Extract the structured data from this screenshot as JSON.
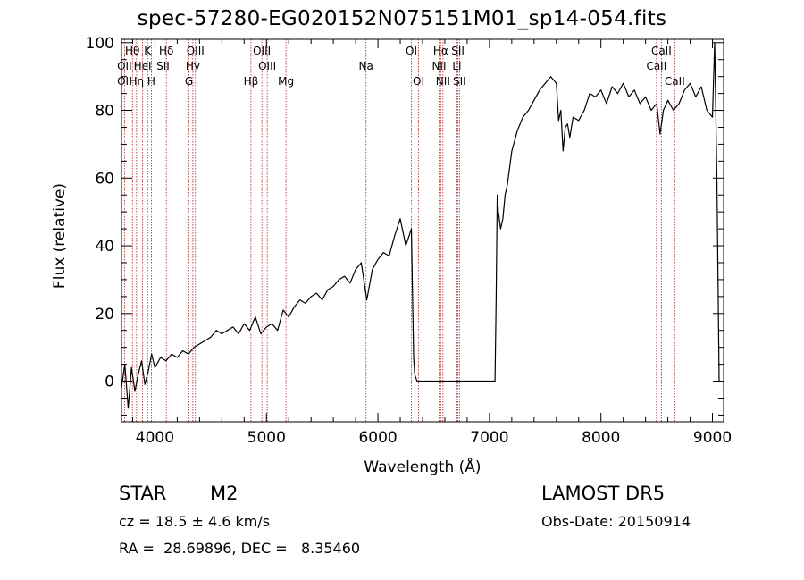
{
  "title": "spec-57280-EG020152N075151M01_sp14-054.fits",
  "info": {
    "object_class": "STAR",
    "subclass": "M2",
    "survey": "LAMOST DR5",
    "cz": "cz = 18.5 ± 4.6 km/s",
    "obs_date": "Obs-Date: 20150914",
    "coords": "RA =  28.69896, DEC =   8.35460"
  },
  "chart_data": {
    "type": "line",
    "xlabel": "Wavelength (Å)",
    "ylabel": "Flux (relative)",
    "xlim": [
      3700,
      9100
    ],
    "ylim": [
      -12,
      101
    ],
    "xticks": [
      4000,
      5000,
      6000,
      7000,
      8000,
      9000
    ],
    "yticks": [
      0,
      20,
      40,
      60,
      80,
      100
    ],
    "grid": false,
    "line_color": "#000000",
    "marker_color": "#b22222",
    "series": [
      {
        "x": [
          3700,
          3730,
          3760,
          3790,
          3820,
          3850,
          3880,
          3910,
          3940,
          3970,
          4000,
          4050,
          4100,
          4150,
          4200,
          4250,
          4300,
          4350,
          4400,
          4450,
          4500,
          4550,
          4600,
          4650,
          4700,
          4750,
          4800,
          4850,
          4900,
          4950,
          5000,
          5050,
          5100,
          5150,
          5200,
          5250,
          5300,
          5350,
          5400,
          5450,
          5500,
          5550,
          5600,
          5650,
          5700,
          5750,
          5800,
          5850,
          5900,
          5950,
          6000,
          6050,
          6100,
          6150,
          6200,
          6250,
          6300,
          6320,
          6330,
          6340,
          6350,
          6400,
          6500,
          6600,
          6700,
          6800,
          6900,
          7000,
          7050,
          7060,
          7070,
          7080,
          7100,
          7120,
          7140,
          7160,
          7200,
          7250,
          7300,
          7350,
          7400,
          7450,
          7500,
          7550,
          7600,
          7620,
          7640,
          7660,
          7680,
          7700,
          7720,
          7750,
          7800,
          7850,
          7900,
          7950,
          8000,
          8050,
          8100,
          8150,
          8200,
          8250,
          8300,
          8350,
          8400,
          8450,
          8500,
          8530,
          8560,
          8600,
          8650,
          8700,
          8750,
          8800,
          8850,
          8900,
          8950,
          9000,
          9020,
          9040,
          9060
        ],
        "y": [
          -2,
          5,
          -8,
          4,
          -3,
          2,
          6,
          -1,
          3,
          8,
          4,
          7,
          6,
          8,
          7,
          9,
          8,
          10,
          11,
          12,
          13,
          15,
          14,
          15,
          16,
          14,
          17,
          15,
          19,
          14,
          16,
          17,
          15,
          21,
          19,
          22,
          24,
          23,
          25,
          26,
          24,
          27,
          28,
          30,
          31,
          29,
          33,
          35,
          24,
          33,
          36,
          38,
          37,
          43,
          48,
          40,
          45,
          7,
          2,
          1,
          0,
          0,
          0,
          0,
          0,
          0,
          0,
          0,
          0,
          25,
          55,
          50,
          45,
          48,
          55,
          58,
          68,
          74,
          78,
          80,
          83,
          86,
          88,
          90,
          88,
          77,
          80,
          68,
          75,
          76,
          72,
          78,
          77,
          80,
          85,
          84,
          86,
          82,
          87,
          85,
          88,
          84,
          86,
          82,
          84,
          80,
          82,
          73,
          80,
          83,
          80,
          82,
          86,
          88,
          84,
          87,
          80,
          78,
          100,
          60,
          0
        ]
      }
    ],
    "lines": [
      {
        "label": "Hθ",
        "wave": 3798,
        "row": 0
      },
      {
        "label": "OII",
        "wave": 3727,
        "row": 1
      },
      {
        "label": "OII",
        "wave": 3727,
        "row": 2
      },
      {
        "label": "Hη",
        "wave": 3835,
        "row": 2
      },
      {
        "label": "K",
        "wave": 3934,
        "row": 0
      },
      {
        "label": "HeI",
        "wave": 3889,
        "row": 1
      },
      {
        "label": "H",
        "wave": 3968,
        "row": 2
      },
      {
        "label": "Hδ",
        "wave": 4102,
        "row": 0
      },
      {
        "label": "SII",
        "wave": 4072,
        "row": 1
      },
      {
        "label": "OIII",
        "wave": 4363,
        "row": 0
      },
      {
        "label": "Hγ",
        "wave": 4340,
        "row": 1
      },
      {
        "label": "G",
        "wave": 4305,
        "row": 2
      },
      {
        "label": "OIII",
        "wave": 4959,
        "row": 0
      },
      {
        "label": "OIII",
        "wave": 5007,
        "row": 1
      },
      {
        "label": "Hβ",
        "wave": 4861,
        "row": 2
      },
      {
        "label": "Mg",
        "wave": 5175,
        "row": 2
      },
      {
        "label": "Na",
        "wave": 5893,
        "row": 1
      },
      {
        "label": "OI",
        "wave": 6300,
        "row": 0
      },
      {
        "label": "OI",
        "wave": 6364,
        "row": 2
      },
      {
        "label": "Hα",
        "wave": 6563,
        "row": 0
      },
      {
        "label": "SII",
        "wave": 6717,
        "row": 0
      },
      {
        "label": "NII",
        "wave": 6548,
        "row": 1
      },
      {
        "label": "Li",
        "wave": 6708,
        "row": 1
      },
      {
        "label": "NII",
        "wave": 6583,
        "row": 2
      },
      {
        "label": "SII",
        "wave": 6731,
        "row": 2
      },
      {
        "label": "CaII",
        "wave": 8542,
        "row": 0
      },
      {
        "label": "CaII",
        "wave": 8498,
        "row": 1
      },
      {
        "label": "CaII",
        "wave": 8662,
        "row": 2
      }
    ]
  }
}
